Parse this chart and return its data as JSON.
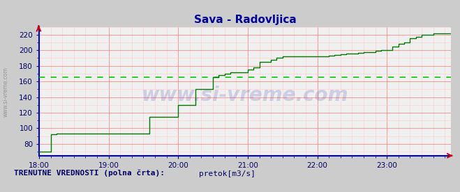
{
  "title": "Sava - Radovljica",
  "title_color": "#000099",
  "title_fontsize": 11,
  "bg_color": "#cccccc",
  "plot_bg_color": "#f0f0f0",
  "grid_color_major": "#ff8888",
  "grid_color_minor": "#ffcccc",
  "line_color": "#007700",
  "avg_line_color": "#00cc00",
  "avg_line_value": 165,
  "axis_spine_color": "#0000cc",
  "tick_color": "#000066",
  "watermark_text": "www.si-vreme.com",
  "watermark_color": "#3333aa",
  "watermark_alpha": 0.18,
  "side_text": "www.si-vreme.com",
  "side_text_color": "#888888",
  "ylim": [
    65,
    230
  ],
  "yticks": [
    80,
    100,
    120,
    140,
    160,
    180,
    200,
    220
  ],
  "xlim_hours": [
    18.0,
    23.92
  ],
  "xtick_hours": [
    18,
    19,
    20,
    21,
    22,
    23
  ],
  "xtick_labels": [
    "18:00",
    "19:00",
    "20:00",
    "21:00",
    "22:00",
    "23:00"
  ],
  "footer_text": "TRENUTNE VREDNOSTI (polna črta):",
  "legend_label": "pretok[m3/s]",
  "legend_color": "#00aa00",
  "arrow_color": "#cc0000",
  "flow_times": [
    18.0,
    18.083,
    18.167,
    18.25,
    18.333,
    18.417,
    18.5,
    18.583,
    18.667,
    18.75,
    18.833,
    18.917,
    19.0,
    19.083,
    19.167,
    19.25,
    19.333,
    19.417,
    19.5,
    19.583,
    19.667,
    19.75,
    19.833,
    19.917,
    20.0,
    20.083,
    20.167,
    20.25,
    20.333,
    20.417,
    20.5,
    20.583,
    20.667,
    20.75,
    20.833,
    20.917,
    21.0,
    21.083,
    21.167,
    21.25,
    21.333,
    21.417,
    21.5,
    21.583,
    21.667,
    21.75,
    21.833,
    21.917,
    22.0,
    22.083,
    22.167,
    22.25,
    22.333,
    22.417,
    22.5,
    22.583,
    22.667,
    22.75,
    22.833,
    22.917,
    23.0,
    23.083,
    23.167,
    23.25,
    23.333,
    23.417,
    23.5,
    23.583,
    23.667,
    23.75,
    23.833,
    23.917
  ],
  "flow_values": [
    70,
    70,
    92,
    93,
    93,
    93,
    93,
    93,
    93,
    93,
    93,
    93,
    93,
    93,
    93,
    93,
    93,
    93,
    93,
    115,
    115,
    115,
    115,
    115,
    130,
    130,
    130,
    150,
    150,
    150,
    165,
    168,
    170,
    172,
    172,
    172,
    175,
    178,
    185,
    185,
    188,
    190,
    192,
    192,
    192,
    192,
    192,
    192,
    192,
    192,
    193,
    194,
    195,
    196,
    196,
    197,
    198,
    198,
    199,
    200,
    200,
    205,
    208,
    210,
    215,
    217,
    220,
    220,
    222,
    222,
    222,
    222
  ]
}
